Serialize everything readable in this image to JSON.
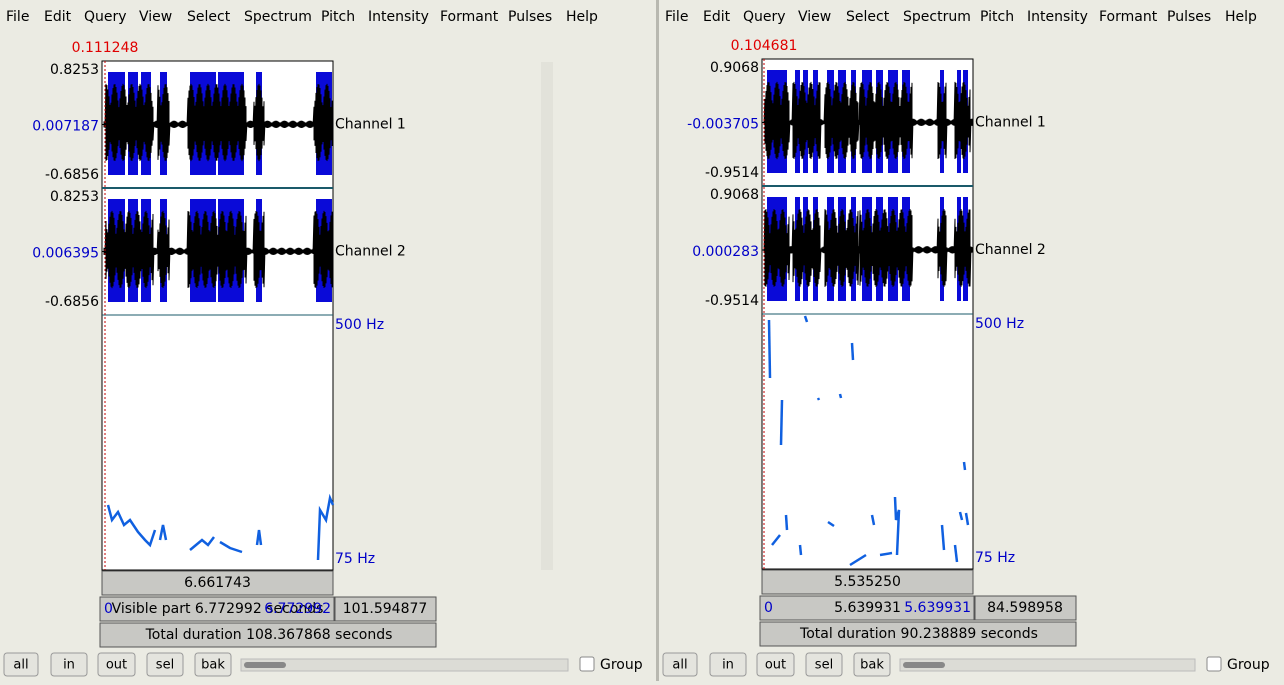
{
  "menu": [
    "File",
    "Edit",
    "Query",
    "View",
    "Select",
    "Spectrum",
    "Pitch",
    "Intensity",
    "Formant",
    "Pulses",
    "Help"
  ],
  "buttons": [
    "all",
    "in",
    "out",
    "sel",
    "bak"
  ],
  "group_label": "Group",
  "windows": [
    {
      "cursor_time": "0.111248",
      "channels": [
        {
          "name": "Channel 1",
          "max": "0.8253",
          "mid": "0.007187",
          "min": "-0.6856"
        },
        {
          "name": "Channel 2",
          "max": "0.8253",
          "mid": "0.006395",
          "min": "-0.6856"
        }
      ],
      "pitch_top": "500 Hz",
      "pitch_bottom": "75 Hz",
      "selection_duration": "6.661743",
      "visible_start": "0",
      "visible_label": "Visible part 6.772992 seconds",
      "visible_end": "6.772992",
      "after": "101.594877",
      "total_duration": "Total duration 108.367868 seconds"
    },
    {
      "cursor_time": "0.104681",
      "channels": [
        {
          "name": "Channel 1",
          "max": "0.9068",
          "mid": "-0.003705",
          "min": "-0.9514"
        },
        {
          "name": "Channel 2",
          "max": "0.9068",
          "mid": "0.000283",
          "min": "-0.9514"
        }
      ],
      "pitch_top": "500 Hz",
      "pitch_bottom": "75 Hz",
      "selection_duration": "5.535250",
      "visible_start": "0",
      "visible_label": "5.639931",
      "visible_end": "5.639931",
      "after": "84.598958",
      "total_duration": "Total duration 90.238889 seconds"
    }
  ]
}
